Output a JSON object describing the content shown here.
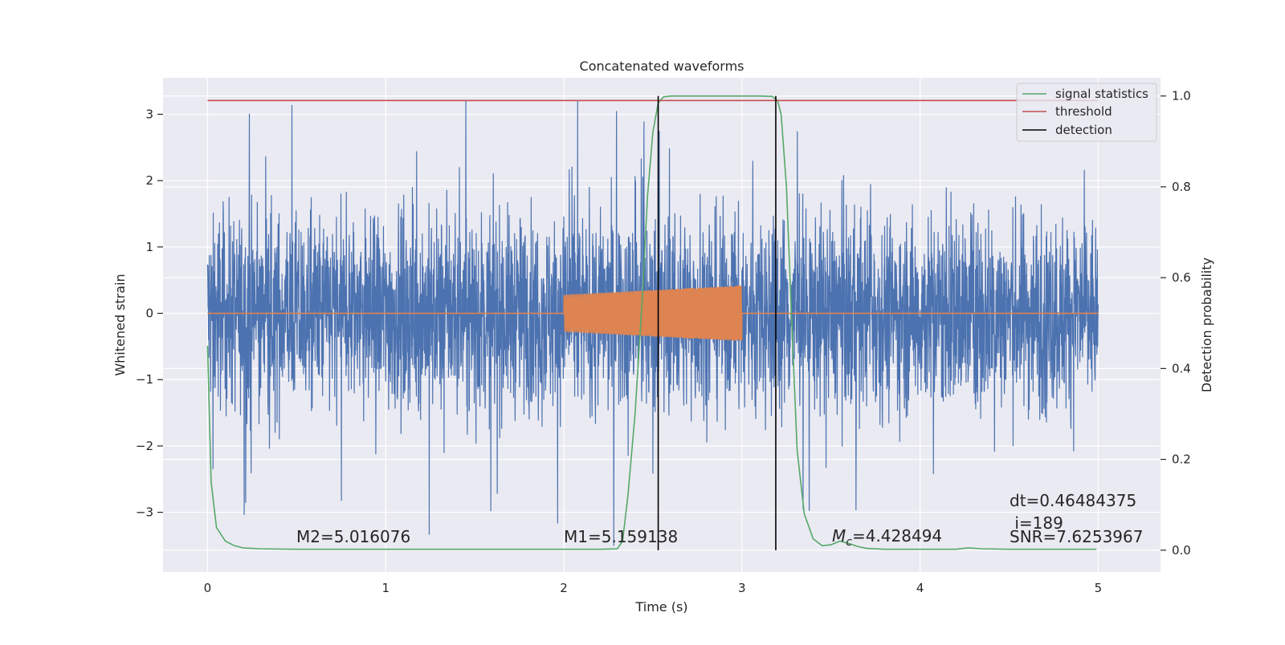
{
  "chart_data": {
    "type": "line",
    "title": "Concatenated waveforms",
    "xlabel": "Time (s)",
    "ylabel": "Whitened strain",
    "ylabel_right": "Detection probability",
    "xlim": [
      -0.25,
      5.35
    ],
    "ylim": [
      -3.9,
      3.55
    ],
    "ylim_right": [
      -0.048,
      1.04
    ],
    "xticks": [
      0,
      1,
      2,
      3,
      4,
      5
    ],
    "xtick_labels": [
      "0",
      "1",
      "2",
      "3",
      "4",
      "5"
    ],
    "yticks": [
      -3,
      -2,
      -1,
      0,
      1,
      2,
      3
    ],
    "ytick_labels": [
      "−3",
      "−2",
      "−1",
      "0",
      "1",
      "2",
      "3"
    ],
    "yticks_right": [
      0.0,
      0.2,
      0.4,
      0.6,
      0.8,
      1.0
    ],
    "ytick_labels_right": [
      "0.0",
      "0.2",
      "0.4",
      "0.6",
      "0.8",
      "1.0"
    ],
    "grid": true,
    "legend_position": "top-right",
    "colors": {
      "strain": "#4c72b0",
      "template": "#dd8452",
      "signal_statistics": "#55a868",
      "threshold": "#c44e52",
      "detection": "#000000",
      "plot_background": "#eaeaf2",
      "grid": "#ffffff"
    },
    "series": [
      {
        "key": "strain",
        "axis": "left",
        "x_range": [
          0,
          5
        ],
        "amplitude_band": [
          -3.5,
          3.2
        ],
        "note_render": "noise"
      },
      {
        "key": "template",
        "axis": "left",
        "x_range": [
          2,
          3
        ],
        "amplitude_start": 0.28,
        "amplitude_end": 0.42
      },
      {
        "name": "signal statistics",
        "axis": "right",
        "x": [
          0,
          0.02,
          0.05,
          0.1,
          0.15,
          0.2,
          0.3,
          0.5,
          1.0,
          1.5,
          2.0,
          2.2,
          2.3,
          2.33,
          2.36,
          2.4,
          2.44,
          2.47,
          2.5,
          2.53,
          2.56,
          2.6,
          2.7,
          2.8,
          2.9,
          3.0,
          3.1,
          3.17,
          3.2,
          3.22,
          3.25,
          3.28,
          3.31,
          3.35,
          3.4,
          3.45,
          3.5,
          3.55,
          3.6,
          3.65,
          3.7,
          3.8,
          4.0,
          4.2,
          4.27,
          4.35,
          4.5,
          4.8,
          4.99
        ],
        "y": [
          0.45,
          0.15,
          0.05,
          0.02,
          0.01,
          0.005,
          0.003,
          0.002,
          0.002,
          0.002,
          0.002,
          0.002,
          0.003,
          0.02,
          0.12,
          0.3,
          0.55,
          0.78,
          0.92,
          0.985,
          0.998,
          1.0,
          1.0,
          1.0,
          1.0,
          1.0,
          1.0,
          0.999,
          0.99,
          0.96,
          0.8,
          0.5,
          0.22,
          0.08,
          0.025,
          0.01,
          0.012,
          0.02,
          0.015,
          0.008,
          0.004,
          0.002,
          0.002,
          0.002,
          0.005,
          0.003,
          0.002,
          0.002,
          0.002
        ]
      },
      {
        "name": "threshold",
        "axis": "right",
        "x": [
          0,
          5
        ],
        "y": [
          0.99,
          0.99
        ]
      },
      {
        "name": "detection",
        "axis": "right",
        "vlines_x": [
          2.53,
          3.19
        ],
        "y_range": [
          0,
          1.0
        ]
      }
    ],
    "legend": [
      "signal statistics",
      "threshold",
      "detection"
    ],
    "annotations": [
      {
        "key": "m2",
        "text": "M2=5.016076"
      },
      {
        "key": "m1",
        "text": "M1=5.159138"
      },
      {
        "key": "mc",
        "symbol": "M",
        "subscript": "c",
        "text": "=4.428494"
      },
      {
        "key": "dt",
        "text": "dt=0.46484375"
      },
      {
        "key": "idx",
        "text": " i=189"
      },
      {
        "key": "snr",
        "text": "SNR=7.6253967"
      }
    ]
  }
}
